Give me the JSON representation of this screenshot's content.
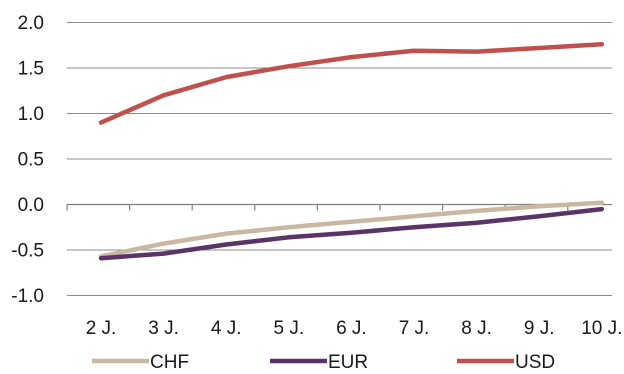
{
  "chart_data": {
    "type": "line",
    "title": "",
    "xlabel": "",
    "ylabel": "",
    "categories": [
      "2 J.",
      "3 J.",
      "4 J.",
      "5 J.",
      "6 J.",
      "7 J.",
      "8 J.",
      "9 J.",
      "10 J."
    ],
    "y_ticks": [
      "2.0",
      "1.5",
      "1.0",
      "0.5",
      "0.0",
      "-0.5",
      "-1.0"
    ],
    "ylim": [
      -1.0,
      2.0
    ],
    "grid": true,
    "legend": "bottom",
    "series": [
      {
        "name": "CHF",
        "color": "#c8b8a2",
        "values": [
          -0.57,
          -0.43,
          -0.32,
          -0.25,
          -0.19,
          -0.13,
          -0.07,
          -0.02,
          0.02
        ]
      },
      {
        "name": "EUR",
        "color": "#5a3467",
        "values": [
          -0.59,
          -0.54,
          -0.44,
          -0.36,
          -0.31,
          -0.25,
          -0.2,
          -0.13,
          -0.05
        ]
      },
      {
        "name": "USD",
        "color": "#c0504d",
        "values": [
          0.9,
          1.2,
          1.4,
          1.52,
          1.62,
          1.69,
          1.68,
          1.72,
          1.76
        ]
      }
    ]
  }
}
